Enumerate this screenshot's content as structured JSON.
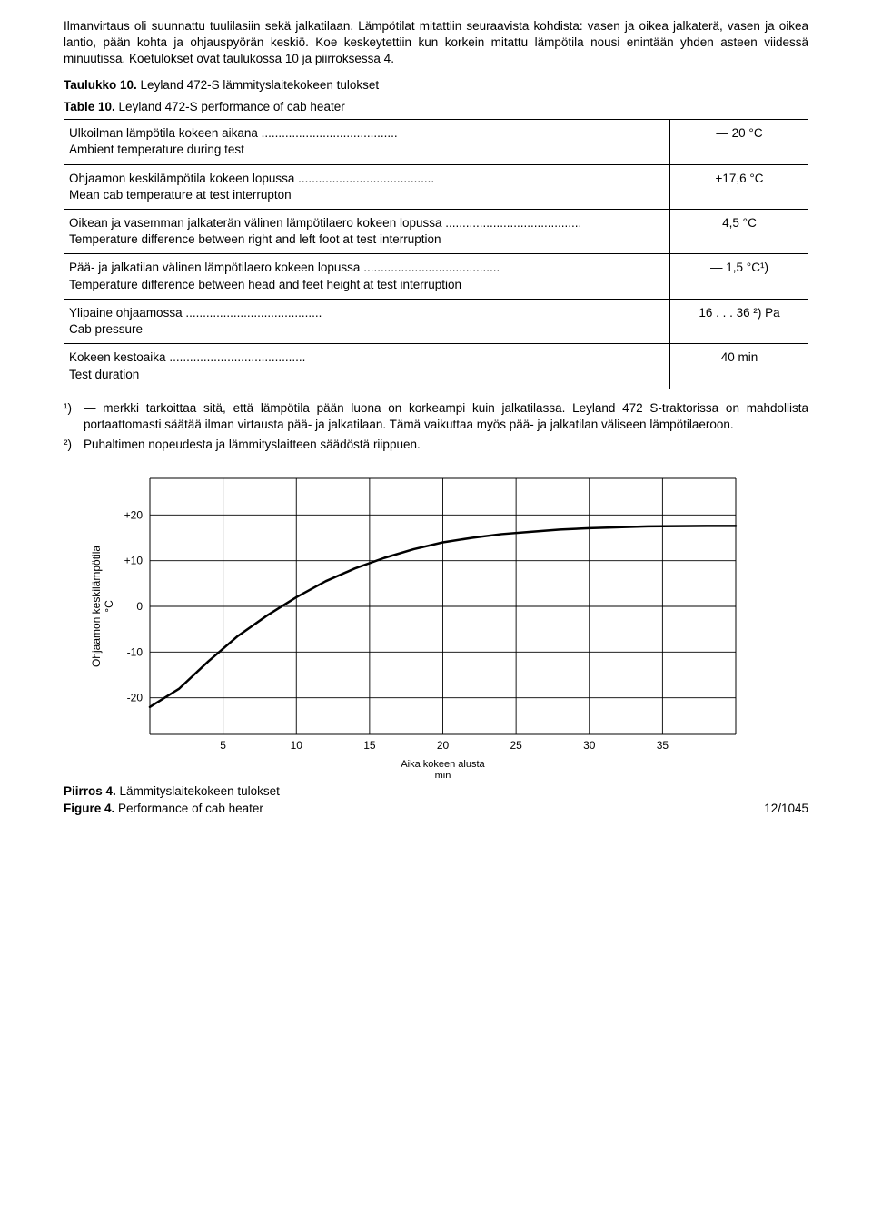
{
  "paragraph": "Ilmanvirtaus oli suunnattu tuulilasiin sekä jalkatilaan. Lämpötilat mitattiin seuraavista kohdista: vasen ja oikea jalkaterä, vasen ja oikea lantio, pään kohta ja ohjauspyörän keskiö. Koe keskeytettiin kun korkein mitattu lämpötila nousi enintään yhden asteen viidessä minuutissa. Koetulokset ovat taulukossa 10 ja piirroksessa 4.",
  "table_title": {
    "fi_label": "Taulukko 10.",
    "fi_text": "Leyland 472-S lämmityslaitekokeen tulokset",
    "en_label": "Table 10.",
    "en_text": "Leyland 472-S performance of cab heater"
  },
  "table_rows": [
    {
      "fi": "Ulkoilman lämpötila kokeen aikana",
      "en": "Ambient temperature during test",
      "val": "— 20 °C"
    },
    {
      "fi": "Ohjaamon keskilämpötila kokeen lopussa",
      "en": "Mean cab temperature at test interrupton",
      "val": "+17,6 °C"
    },
    {
      "fi": "Oikean ja vasemman jalkaterän välinen lämpötilaero kokeen lopussa",
      "en": "Temperature difference between right and left foot at test interruption",
      "val": "4,5 °C"
    },
    {
      "fi": "Pää- ja jalkatilan välinen lämpötilaero kokeen lopussa",
      "en": "Temperature difference between head and feet height at test interruption",
      "val": "— 1,5 °C¹)"
    },
    {
      "fi": "Ylipaine ohjaamossa",
      "en": "Cab pressure",
      "val": "16 . . . 36 ²) Pa"
    },
    {
      "fi": "Kokeen kestoaika",
      "en": "Test duration",
      "val": "40 min"
    }
  ],
  "footnotes": [
    {
      "mark": "¹)",
      "text": "— merkki tarkoittaa sitä, että lämpötila pään luona on korkeampi kuin jalkatilassa. Leyland 472 S-traktorissa on mahdollista portaattomasti säätää ilman virtausta pää- ja jalkatilaan. Tämä vaikuttaa myös pää- ja jalkatilan väliseen lämpötilaeroon."
    },
    {
      "mark": "²)",
      "text": "Puhaltimen nopeudesta ja lämmityslaitteen säädöstä riippuen."
    }
  ],
  "chart": {
    "type": "line",
    "ylabel": "Ohjaamon keskilämpötila\n°C",
    "xlabel": "Aika kokeen alusta\nmin",
    "xlim": [
      0,
      40
    ],
    "ylim": [
      -28,
      28
    ],
    "xticks": [
      5,
      10,
      15,
      20,
      25,
      30,
      35
    ],
    "yticks": [
      -20,
      -10,
      0,
      10,
      20
    ],
    "ygrid_extra": [
      -28,
      28
    ],
    "xgrid_all": [
      0,
      5,
      10,
      15,
      20,
      25,
      30,
      35,
      40
    ],
    "line_color": "#000000",
    "line_width": 2.5,
    "grid_color": "#000000",
    "grid_width": 0.9,
    "background": "#ffffff",
    "font_size": 12,
    "points": [
      [
        0,
        -22
      ],
      [
        2,
        -18
      ],
      [
        4,
        -12
      ],
      [
        6,
        -6.5
      ],
      [
        8,
        -2
      ],
      [
        10,
        2
      ],
      [
        12,
        5.5
      ],
      [
        14,
        8.3
      ],
      [
        16,
        10.6
      ],
      [
        18,
        12.5
      ],
      [
        20,
        14
      ],
      [
        22,
        15
      ],
      [
        24,
        15.8
      ],
      [
        26,
        16.3
      ],
      [
        28,
        16.8
      ],
      [
        30,
        17.1
      ],
      [
        32,
        17.3
      ],
      [
        34,
        17.5
      ],
      [
        36,
        17.55
      ],
      [
        38,
        17.6
      ],
      [
        40,
        17.6
      ]
    ]
  },
  "figure_caption": {
    "fi_label": "Piirros 4.",
    "fi_text": "Lämmityslaitekokeen tulokset",
    "en_label": "Figure 4.",
    "en_text": "Performance of cab heater"
  },
  "page_number": "12/1045"
}
